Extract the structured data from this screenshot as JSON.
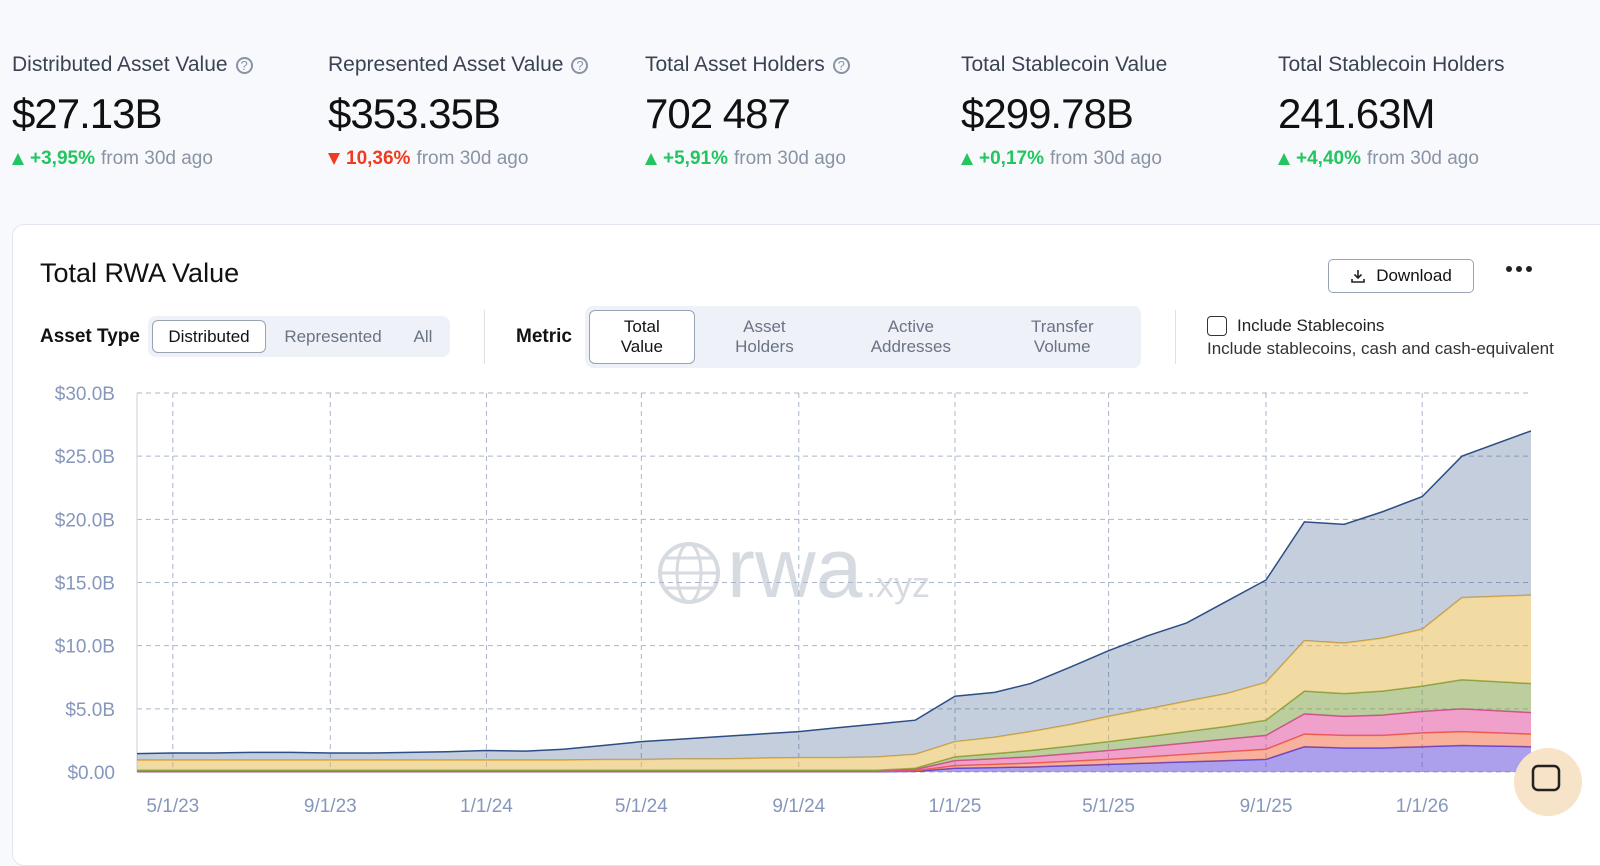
{
  "stats": [
    {
      "label": "Distributed Asset Value",
      "help": true,
      "value": "$27.13B",
      "change": "+3,95%",
      "direction": "up",
      "note": "from 30d ago"
    },
    {
      "label": "Represented Asset Value",
      "help": true,
      "value": "$353.35B",
      "change": "10,36%",
      "direction": "down",
      "note": "from 30d ago"
    },
    {
      "label": "Total Asset Holders",
      "help": true,
      "value": "702 487",
      "change": "+5,91%",
      "direction": "up",
      "note": "from 30d ago"
    },
    {
      "label": "Total Stablecoin Value",
      "help": false,
      "value": "$299.78B",
      "change": "+0,17%",
      "direction": "up",
      "note": "from 30d ago"
    },
    {
      "label": "Total Stablecoin Holders",
      "help": false,
      "value": "241.63M",
      "change": "+4,40%",
      "direction": "up",
      "note": "from 30d ago"
    }
  ],
  "panel": {
    "title": "Total RWA Value",
    "download": "Download",
    "asset_type": {
      "label": "Asset Type",
      "options": [
        "Distributed",
        "Represented",
        "All"
      ],
      "selected": 0
    },
    "metric": {
      "label": "Metric",
      "options": [
        "Total Value",
        "Asset Holders",
        "Active Addresses",
        "Transfer Volume"
      ],
      "selected": 0
    },
    "stablecoins": {
      "label": "Include Stablecoins",
      "description": "Include stablecoins, cash and cash-equivalent",
      "checked": false
    }
  },
  "chart_data": {
    "type": "area",
    "stacked": true,
    "watermark": {
      "main": "rwa",
      "suffix": ".xyz"
    },
    "x": [
      "4/3/23",
      "5/1/23",
      "6/1/23",
      "7/1/23",
      "8/1/23",
      "9/1/23",
      "10/1/23",
      "11/1/23",
      "12/1/23",
      "1/1/24",
      "2/1/24",
      "3/1/24",
      "4/1/24",
      "5/1/24",
      "6/1/24",
      "7/1/24",
      "8/1/24",
      "9/1/24",
      "10/1/24",
      "11/1/24",
      "12/1/24",
      "1/1/25",
      "2/1/25",
      "3/1/25",
      "4/1/25",
      "5/1/25",
      "6/1/25",
      "7/1/25",
      "8/1/25",
      "9/1/25",
      "10/1/25",
      "11/1/25",
      "12/1/25",
      "1/1/26",
      "2/1/26",
      "3/27/26"
    ],
    "xlim": [
      "4/3/23",
      "3/27/26"
    ],
    "xticks": [
      "5/1/23",
      "9/1/23",
      "1/1/24",
      "5/1/24",
      "9/1/24",
      "1/1/25",
      "5/1/25",
      "9/1/25",
      "1/1/26"
    ],
    "ylim": [
      0,
      30
    ],
    "yticks": [
      {
        "value": 0,
        "label": "$0.00"
      },
      {
        "value": 5,
        "label": "$5.0B"
      },
      {
        "value": 10,
        "label": "$10.0B"
      },
      {
        "value": 15,
        "label": "$15.0B"
      },
      {
        "value": 20,
        "label": "$20.0B"
      },
      {
        "value": 25,
        "label": "$25.0B"
      },
      {
        "value": 30,
        "label": "$30.0B"
      }
    ],
    "grid": true,
    "series": [
      {
        "color": "#5a3fd8",
        "values": [
          0.02,
          0.02,
          0.02,
          0.02,
          0.02,
          0.02,
          0.02,
          0.02,
          0.02,
          0.02,
          0.02,
          0.02,
          0.02,
          0.02,
          0.02,
          0.02,
          0.02,
          0.02,
          0.02,
          0.02,
          0.05,
          0.3,
          0.35,
          0.4,
          0.5,
          0.6,
          0.7,
          0.8,
          0.9,
          1.0,
          2.0,
          1.9,
          1.9,
          2.0,
          2.1,
          2.0
        ]
      },
      {
        "color": "#f0643c",
        "values": [
          0.02,
          0.02,
          0.02,
          0.02,
          0.02,
          0.02,
          0.02,
          0.02,
          0.02,
          0.02,
          0.02,
          0.02,
          0.02,
          0.02,
          0.02,
          0.02,
          0.02,
          0.02,
          0.02,
          0.02,
          0.05,
          0.2,
          0.25,
          0.3,
          0.35,
          0.4,
          0.5,
          0.6,
          0.7,
          0.8,
          1.0,
          1.0,
          1.0,
          1.1,
          1.1,
          1.0
        ]
      },
      {
        "color": "#e0449a",
        "values": [
          0.05,
          0.05,
          0.05,
          0.05,
          0.05,
          0.05,
          0.05,
          0.05,
          0.05,
          0.05,
          0.05,
          0.05,
          0.05,
          0.05,
          0.05,
          0.05,
          0.05,
          0.05,
          0.05,
          0.05,
          0.1,
          0.4,
          0.45,
          0.5,
          0.6,
          0.7,
          0.8,
          0.9,
          1.0,
          1.1,
          1.6,
          1.5,
          1.6,
          1.7,
          1.8,
          1.7
        ]
      },
      {
        "color": "#7a9e3e",
        "values": [
          0.05,
          0.05,
          0.05,
          0.05,
          0.05,
          0.05,
          0.05,
          0.05,
          0.05,
          0.05,
          0.05,
          0.05,
          0.05,
          0.05,
          0.05,
          0.05,
          0.05,
          0.05,
          0.05,
          0.05,
          0.1,
          0.3,
          0.4,
          0.5,
          0.6,
          0.7,
          0.8,
          0.9,
          1.0,
          1.2,
          1.8,
          1.8,
          1.9,
          2.0,
          2.3,
          2.3
        ]
      },
      {
        "color": "#e6b548",
        "values": [
          0.8,
          0.8,
          0.8,
          0.8,
          0.8,
          0.8,
          0.8,
          0.8,
          0.8,
          0.8,
          0.8,
          0.8,
          0.85,
          0.85,
          0.9,
          0.9,
          0.95,
          1.0,
          1.0,
          1.05,
          1.1,
          1.2,
          1.3,
          1.5,
          1.7,
          2.0,
          2.2,
          2.4,
          2.6,
          3.0,
          4.0,
          4.0,
          4.2,
          4.5,
          6.5,
          7.0
        ]
      },
      {
        "color": "#2c4e86",
        "values": [
          0.51,
          0.56,
          0.56,
          0.61,
          0.61,
          0.56,
          0.56,
          0.61,
          0.66,
          0.76,
          0.71,
          0.86,
          1.11,
          1.41,
          1.56,
          1.76,
          1.91,
          2.06,
          2.36,
          2.61,
          2.7,
          3.6,
          3.55,
          3.8,
          4.55,
          5.2,
          5.8,
          6.2,
          7.3,
          8.1,
          9.4,
          9.4,
          10.0,
          10.5,
          11.2,
          13.0
        ]
      }
    ]
  }
}
